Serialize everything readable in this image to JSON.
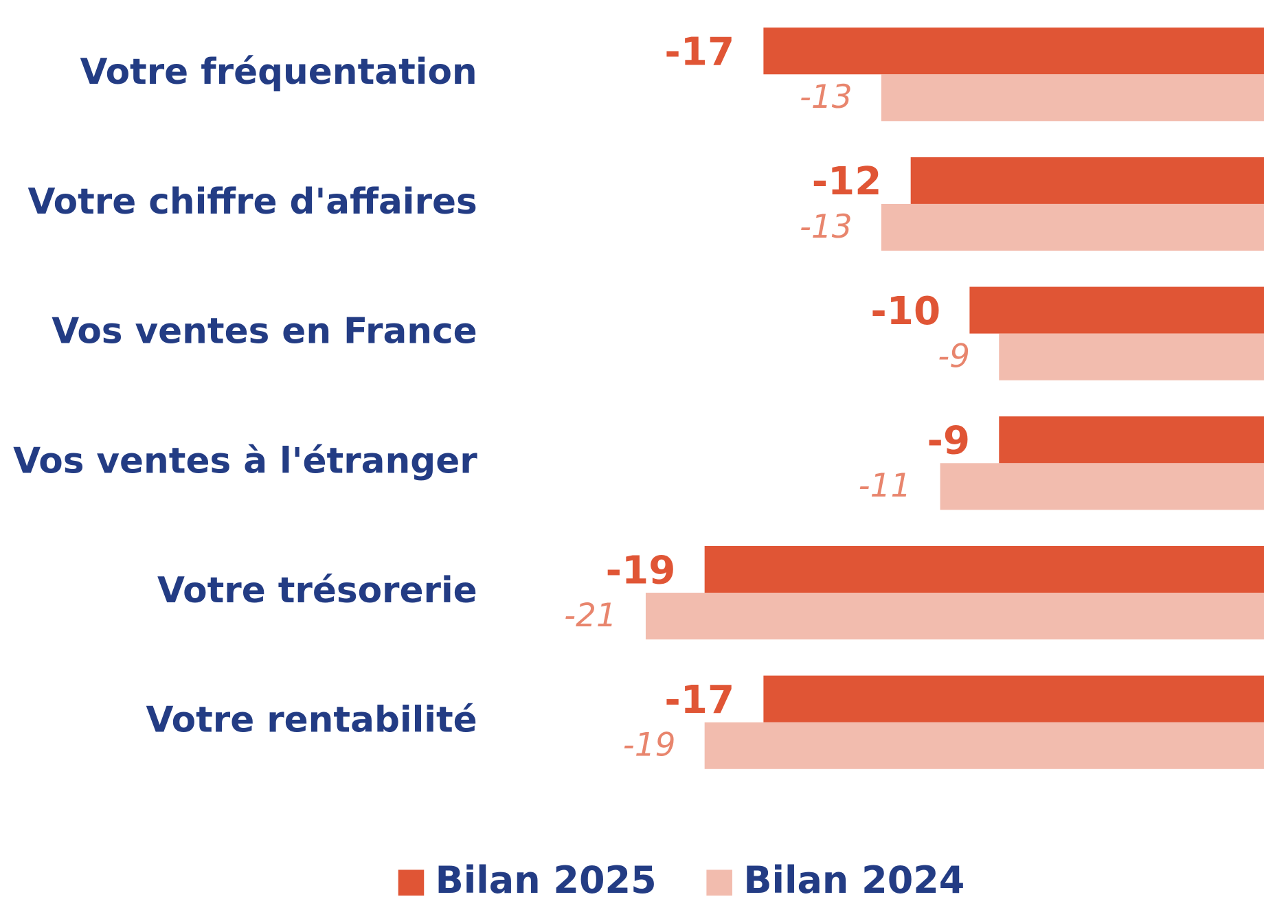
{
  "chart_data": {
    "type": "bar",
    "orientation": "horizontal",
    "categories": [
      "Votre fréquentation",
      "Votre chiffre d'affaires",
      "Vos ventes en France",
      "Vos ventes à l'étranger",
      "Votre trésorerie",
      "Votre rentabilité"
    ],
    "series": [
      {
        "name": "Bilan 2025",
        "color": "#e05535",
        "values": [
          -17,
          -12,
          -10,
          -9,
          -19,
          -17
        ]
      },
      {
        "name": "Bilan 2024",
        "color": "#f2bcae",
        "values": [
          -13,
          -13,
          -9,
          -11,
          -21,
          -19
        ]
      }
    ],
    "xlim": [
      -21,
      0
    ],
    "legend": "bottom"
  }
}
